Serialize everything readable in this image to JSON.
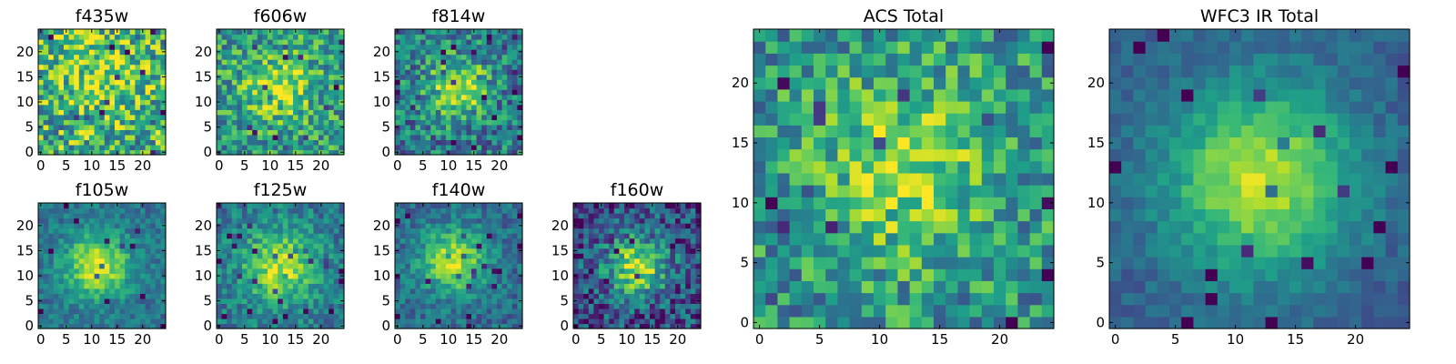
{
  "chart_data": [
    {
      "type": "heatmap",
      "title": "f435w",
      "xlim": [
        -0.5,
        24.5
      ],
      "ylim": [
        -0.5,
        24.5
      ],
      "xticks": [
        "0",
        "5",
        "10",
        "15",
        "20"
      ],
      "yticks": [
        "0",
        "5",
        "10",
        "15",
        "20"
      ],
      "colormap": "viridis",
      "center": [
        12,
        14
      ],
      "sigma": 6,
      "peak": 0.25,
      "base": 0.62,
      "noise": 0.36,
      "seed": 11
    },
    {
      "type": "heatmap",
      "title": "f606w",
      "xlim": [
        -0.5,
        24.5
      ],
      "ylim": [
        -0.5,
        24.5
      ],
      "xticks": [
        "0",
        "5",
        "10",
        "15",
        "20"
      ],
      "yticks": [
        "0",
        "5",
        "10",
        "15",
        "20"
      ],
      "colormap": "viridis",
      "center": [
        12,
        13
      ],
      "sigma": 4.5,
      "peak": 0.35,
      "base": 0.55,
      "noise": 0.28,
      "seed": 23
    },
    {
      "type": "heatmap",
      "title": "f814w",
      "xlim": [
        -0.5,
        24.5
      ],
      "ylim": [
        -0.5,
        24.5
      ],
      "xticks": [
        "0",
        "5",
        "10",
        "15",
        "20"
      ],
      "yticks": [
        "0",
        "5",
        "10",
        "15",
        "20"
      ],
      "colormap": "viridis",
      "center": [
        12,
        13
      ],
      "sigma": 4.0,
      "peak": 0.5,
      "base": 0.42,
      "noise": 0.28,
      "seed": 37
    },
    {
      "type": "heatmap",
      "title": "f105w",
      "xlim": [
        -0.5,
        24.5
      ],
      "ylim": [
        -0.5,
        24.5
      ],
      "xticks": [
        "0",
        "5",
        "10",
        "15",
        "20"
      ],
      "yticks": [
        "0",
        "5",
        "10",
        "15",
        "20"
      ],
      "colormap": "viridis",
      "center": [
        11,
        12
      ],
      "sigma": 4.5,
      "peak": 0.55,
      "base": 0.38,
      "noise": 0.14,
      "seed": 41
    },
    {
      "type": "heatmap",
      "title": "f125w",
      "xlim": [
        -0.5,
        24.5
      ],
      "ylim": [
        -0.5,
        24.5
      ],
      "xticks": [
        "0",
        "5",
        "10",
        "15",
        "20"
      ],
      "yticks": [
        "0",
        "5",
        "10",
        "15",
        "20"
      ],
      "colormap": "viridis",
      "center": [
        12,
        12
      ],
      "sigma": 5.0,
      "peak": 0.5,
      "base": 0.4,
      "noise": 0.18,
      "seed": 53
    },
    {
      "type": "heatmap",
      "title": "f140w",
      "xlim": [
        -0.5,
        24.5
      ],
      "ylim": [
        -0.5,
        24.5
      ],
      "xticks": [
        "0",
        "5",
        "10",
        "15",
        "20"
      ],
      "yticks": [
        "0",
        "5",
        "10",
        "15",
        "20"
      ],
      "colormap": "viridis",
      "center": [
        11,
        13
      ],
      "sigma": 4.5,
      "peak": 0.55,
      "base": 0.35,
      "noise": 0.16,
      "seed": 67
    },
    {
      "type": "heatmap",
      "title": "f160w",
      "xlim": [
        -0.5,
        24.5
      ],
      "ylim": [
        -0.5,
        24.5
      ],
      "xticks": [
        "0",
        "5",
        "10",
        "15",
        "20"
      ],
      "yticks": [
        "0",
        "5",
        "10",
        "15",
        "20"
      ],
      "colormap": "viridis",
      "center": [
        12,
        12
      ],
      "sigma": 4.0,
      "peak": 0.65,
      "base": 0.25,
      "noise": 0.26,
      "seed": 79
    },
    {
      "type": "heatmap",
      "title": "ACS Total",
      "xlim": [
        -0.5,
        24.5
      ],
      "ylim": [
        -0.5,
        24.5
      ],
      "xticks": [
        "0",
        "5",
        "10",
        "15",
        "20"
      ],
      "yticks": [
        "0",
        "5",
        "10",
        "15",
        "20"
      ],
      "colormap": "viridis",
      "center": [
        12,
        13
      ],
      "sigma": 5.0,
      "peak": 0.35,
      "base": 0.52,
      "noise": 0.26,
      "seed": 89
    },
    {
      "type": "heatmap",
      "title": "WFC3 IR Total",
      "xlim": [
        -0.5,
        24.5
      ],
      "ylim": [
        -0.5,
        24.5
      ],
      "xticks": [
        "0",
        "5",
        "10",
        "15",
        "20"
      ],
      "yticks": [
        "0",
        "5",
        "10",
        "15",
        "20"
      ],
      "colormap": "viridis",
      "center": [
        12,
        12
      ],
      "sigma": 5.5,
      "peak": 0.6,
      "base": 0.3,
      "noise": 0.09,
      "seed": 97
    }
  ]
}
